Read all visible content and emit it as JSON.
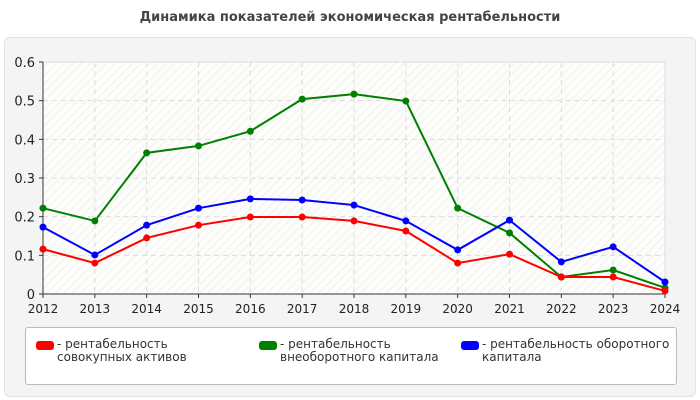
{
  "chart_data": {
    "type": "line",
    "title": "Динамика показателей экономическая рентабельности",
    "x": [
      "2012",
      "2013",
      "2014",
      "2015",
      "2016",
      "2017",
      "2018",
      "2019",
      "2020",
      "2021",
      "2022",
      "2023",
      "2024"
    ],
    "ylim": [
      0,
      0.6
    ],
    "yticks": [
      "0",
      "0.1",
      "0.2",
      "0.3",
      "0.4",
      "0.5",
      "0.6"
    ],
    "grid": true,
    "legend_position": "bottom",
    "series": [
      {
        "name": "- рентабельность совокупных активов",
        "color": "#ff0000",
        "values": [
          0.116,
          0.08,
          0.145,
          0.178,
          0.199,
          0.199,
          0.189,
          0.163,
          0.08,
          0.103,
          0.044,
          0.044,
          0.008
        ]
      },
      {
        "name": "- рентабельность внеоборотного капитала",
        "color": "#008000",
        "values": [
          0.222,
          0.189,
          0.365,
          0.383,
          0.421,
          0.504,
          0.517,
          0.499,
          0.222,
          0.158,
          0.044,
          0.062,
          0.016
        ]
      },
      {
        "name": "- рентабельность оборотного капитала",
        "color": "#0000ff",
        "values": [
          0.173,
          0.101,
          0.178,
          0.222,
          0.246,
          0.243,
          0.23,
          0.189,
          0.114,
          0.191,
          0.083,
          0.122,
          0.031
        ]
      }
    ]
  }
}
